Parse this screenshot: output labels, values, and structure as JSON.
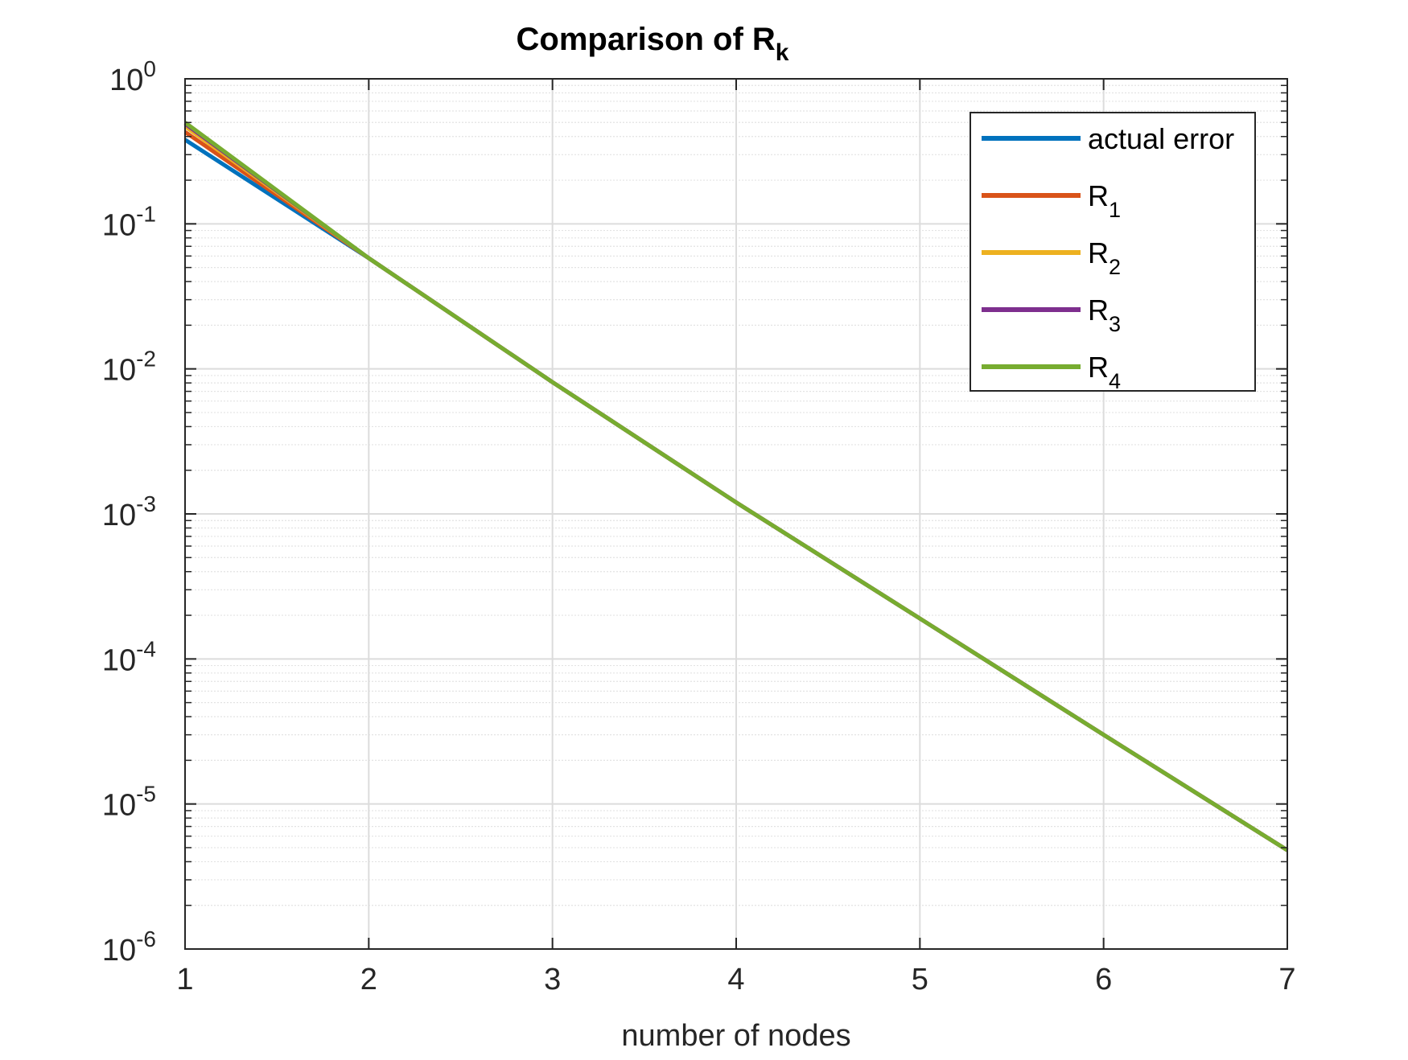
{
  "chart_data": {
    "type": "line",
    "title": "Comparison of R",
    "title_subscript": "k",
    "xlabel": "number of nodes",
    "ylabel": "",
    "xlim": [
      1,
      7
    ],
    "ylim": [
      1e-06,
      1
    ],
    "yscale": "log",
    "grid": true,
    "minor_grid": true,
    "legend_position": "top-right",
    "x_ticks": [
      "1",
      "2",
      "3",
      "4",
      "5",
      "6",
      "7"
    ],
    "y_ticks": [
      {
        "base": "10",
        "exp": "0"
      },
      {
        "base": "10",
        "exp": "-1"
      },
      {
        "base": "10",
        "exp": "-2"
      },
      {
        "base": "10",
        "exp": "-3"
      },
      {
        "base": "10",
        "exp": "-4"
      },
      {
        "base": "10",
        "exp": "-5"
      },
      {
        "base": "10",
        "exp": "-6"
      }
    ],
    "series": [
      {
        "name": "actual error",
        "base": "actual error",
        "sub": "",
        "color": "#0072BD",
        "points": [
          [
            1,
            0.38
          ],
          [
            2,
            0.058
          ],
          [
            3,
            0.0081
          ],
          [
            4,
            0.0012
          ],
          [
            5,
            0.00019
          ],
          [
            6,
            3e-05
          ],
          [
            7,
            4.8e-06
          ]
        ]
      },
      {
        "name": "R1",
        "base": "R",
        "sub": "1",
        "color": "#D95319",
        "points": [
          [
            1,
            0.43
          ],
          [
            2,
            0.058
          ],
          [
            3,
            0.0081
          ],
          [
            4,
            0.0012
          ],
          [
            5,
            0.00019
          ],
          [
            6,
            3e-05
          ],
          [
            7,
            4.8e-06
          ]
        ]
      },
      {
        "name": "R2",
        "base": "R",
        "sub": "2",
        "color": "#EDB120",
        "points": [
          [
            1,
            0.47
          ],
          [
            2,
            0.058
          ],
          [
            3,
            0.0081
          ],
          [
            4,
            0.0012
          ],
          [
            5,
            0.00019
          ],
          [
            6,
            3e-05
          ],
          [
            7,
            4.8e-06
          ]
        ]
      },
      {
        "name": "R3",
        "base": "R",
        "sub": "3",
        "color": "#7E2F8E",
        "points": [
          [
            1,
            0.49
          ],
          [
            2,
            0.058
          ],
          [
            3,
            0.0081
          ],
          [
            4,
            0.0012
          ],
          [
            5,
            0.00019
          ],
          [
            6,
            3e-05
          ],
          [
            7,
            4.8e-06
          ]
        ]
      },
      {
        "name": "R4",
        "base": "R",
        "sub": "4",
        "color": "#77AC30",
        "points": [
          [
            1,
            0.5
          ],
          [
            2,
            0.058
          ],
          [
            3,
            0.0081
          ],
          [
            4,
            0.0012
          ],
          [
            5,
            0.00019
          ],
          [
            6,
            3e-05
          ],
          [
            7,
            4.8e-06
          ]
        ]
      }
    ]
  }
}
